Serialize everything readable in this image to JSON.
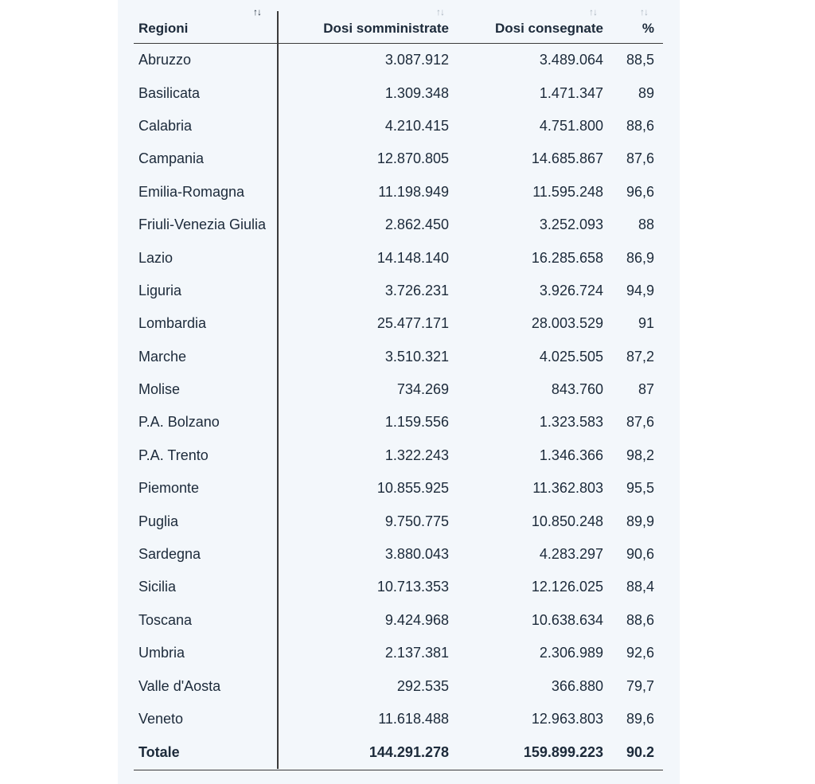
{
  "table": {
    "headers": {
      "region": "Regioni",
      "administered": "Dosi somministrate",
      "delivered": "Dosi consegnate",
      "percent": "%"
    },
    "sort_icon": "↑↓",
    "rows": [
      {
        "region": "Abruzzo",
        "administered": "3.087.912",
        "delivered": "3.489.064",
        "percent": "88,5"
      },
      {
        "region": "Basilicata",
        "administered": "1.309.348",
        "delivered": "1.471.347",
        "percent": "89"
      },
      {
        "region": "Calabria",
        "administered": "4.210.415",
        "delivered": "4.751.800",
        "percent": "88,6"
      },
      {
        "region": "Campania",
        "administered": "12.870.805",
        "delivered": "14.685.867",
        "percent": "87,6"
      },
      {
        "region": "Emilia-Romagna",
        "administered": "11.198.949",
        "delivered": "11.595.248",
        "percent": "96,6"
      },
      {
        "region": "Friuli-Venezia Giulia",
        "administered": "2.862.450",
        "delivered": "3.252.093",
        "percent": "88"
      },
      {
        "region": "Lazio",
        "administered": "14.148.140",
        "delivered": "16.285.658",
        "percent": "86,9"
      },
      {
        "region": "Liguria",
        "administered": "3.726.231",
        "delivered": "3.926.724",
        "percent": "94,9"
      },
      {
        "region": "Lombardia",
        "administered": "25.477.171",
        "delivered": "28.003.529",
        "percent": "91"
      },
      {
        "region": "Marche",
        "administered": "3.510.321",
        "delivered": "4.025.505",
        "percent": "87,2"
      },
      {
        "region": "Molise",
        "administered": "734.269",
        "delivered": "843.760",
        "percent": "87"
      },
      {
        "region": "P.A. Bolzano",
        "administered": "1.159.556",
        "delivered": "1.323.583",
        "percent": "87,6"
      },
      {
        "region": "P.A. Trento",
        "administered": "1.322.243",
        "delivered": "1.346.366",
        "percent": "98,2"
      },
      {
        "region": "Piemonte",
        "administered": "10.855.925",
        "delivered": "11.362.803",
        "percent": "95,5"
      },
      {
        "region": "Puglia",
        "administered": "9.750.775",
        "delivered": "10.850.248",
        "percent": "89,9"
      },
      {
        "region": "Sardegna",
        "administered": "3.880.043",
        "delivered": "4.283.297",
        "percent": "90,6"
      },
      {
        "region": "Sicilia",
        "administered": "10.713.353",
        "delivered": "12.126.025",
        "percent": "88,4"
      },
      {
        "region": "Toscana",
        "administered": "9.424.968",
        "delivered": "10.638.634",
        "percent": "88,6"
      },
      {
        "region": "Umbria",
        "administered": "2.137.381",
        "delivered": "2.306.989",
        "percent": "92,6"
      },
      {
        "region": "Valle d'Aosta",
        "administered": "292.535",
        "delivered": "366.880",
        "percent": "79,7"
      },
      {
        "region": "Veneto",
        "administered": "11.618.488",
        "delivered": "12.963.803",
        "percent": "89,6"
      }
    ],
    "total": {
      "region": "Totale",
      "administered": "144.291.278",
      "delivered": "159.899.223",
      "percent": "90.2"
    }
  }
}
